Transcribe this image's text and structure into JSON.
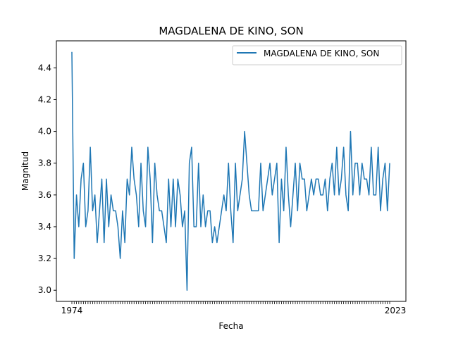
{
  "chart_data": {
    "type": "line",
    "title": "MAGDALENA DE KINO, SON",
    "xlabel": "Fecha",
    "ylabel": "Magnitud",
    "ylim": [
      2.93,
      4.57
    ],
    "yticks": [
      "3.0",
      "3.2",
      "3.4",
      "3.6",
      "3.8",
      "4.0",
      "4.2",
      "4.4"
    ],
    "xtick_first": "1974",
    "xtick_last": "2023",
    "legend_placement": "top-right",
    "line_color": "#1f77b4",
    "series": [
      {
        "name": "MAGDALENA DE KINO, SON",
        "values": [
          4.5,
          3.2,
          3.6,
          3.4,
          3.7,
          3.8,
          3.4,
          3.5,
          3.9,
          3.5,
          3.6,
          3.3,
          3.5,
          3.7,
          3.3,
          3.7,
          3.4,
          3.6,
          3.5,
          3.5,
          3.4,
          3.2,
          3.5,
          3.3,
          3.7,
          3.6,
          3.9,
          3.7,
          3.6,
          3.4,
          3.8,
          3.5,
          3.4,
          3.9,
          3.7,
          3.3,
          3.8,
          3.6,
          3.5,
          3.5,
          3.4,
          3.3,
          3.7,
          3.4,
          3.7,
          3.4,
          3.7,
          3.6,
          3.4,
          3.5,
          3.0,
          3.8,
          3.9,
          3.4,
          3.4,
          3.8,
          3.4,
          3.6,
          3.4,
          3.5,
          3.5,
          3.3,
          3.4,
          3.3,
          3.4,
          3.5,
          3.6,
          3.5,
          3.8,
          3.5,
          3.3,
          3.8,
          3.5,
          3.6,
          3.7,
          4.0,
          3.8,
          3.6,
          3.5,
          3.5,
          3.5,
          3.5,
          3.8,
          3.5,
          3.6,
          3.7,
          3.8,
          3.6,
          3.7,
          3.8,
          3.3,
          3.7,
          3.5,
          3.9,
          3.6,
          3.4,
          3.6,
          3.8,
          3.5,
          3.8,
          3.7,
          3.7,
          3.5,
          3.6,
          3.7,
          3.6,
          3.7,
          3.7,
          3.6,
          3.6,
          3.7,
          3.5,
          3.7,
          3.8,
          3.6,
          3.9,
          3.6,
          3.7,
          3.9,
          3.6,
          3.5,
          4.0,
          3.6,
          3.8,
          3.8,
          3.6,
          3.8,
          3.7,
          3.7,
          3.6,
          3.9,
          3.6,
          3.6,
          3.9,
          3.5,
          3.7,
          3.8,
          3.5,
          3.8
        ]
      }
    ]
  }
}
